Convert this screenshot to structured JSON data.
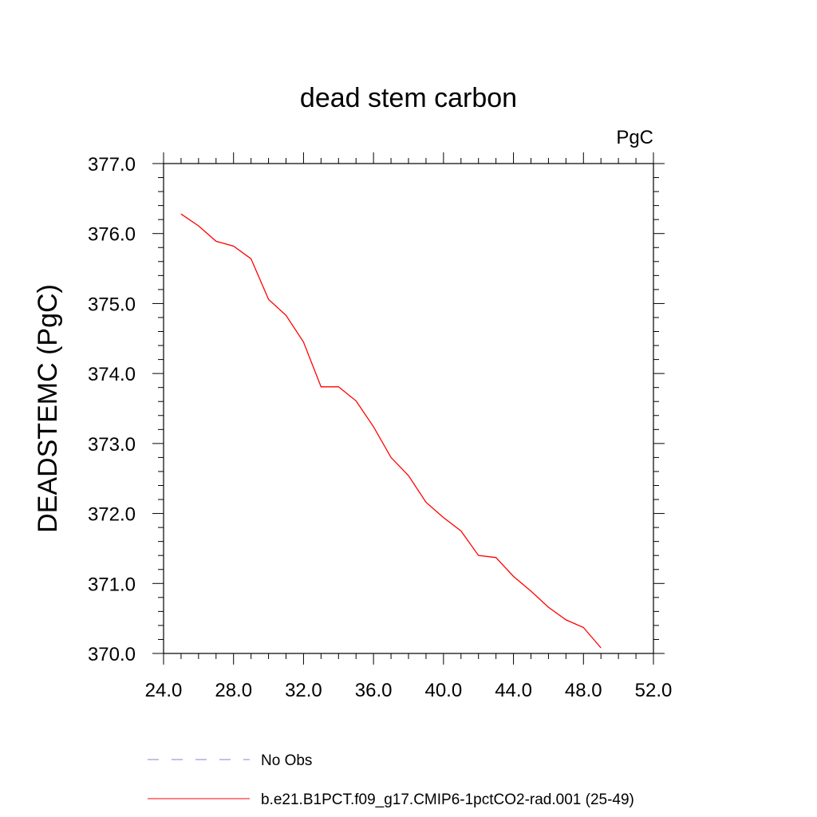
{
  "chart_data": {
    "type": "line",
    "title": "dead stem carbon",
    "units_label": "PgC",
    "xlabel": "",
    "ylabel": "DEADSTEMC  (PgC)",
    "xlim": [
      24,
      52
    ],
    "ylim": [
      370,
      377
    ],
    "x_ticks": [
      24,
      28,
      32,
      36,
      40,
      44,
      48,
      52
    ],
    "x_tick_labels": [
      "24.0",
      "28.0",
      "32.0",
      "36.0",
      "40.0",
      "44.0",
      "48.0",
      "52.0"
    ],
    "y_ticks": [
      370,
      371,
      372,
      373,
      374,
      375,
      376,
      377
    ],
    "y_tick_labels": [
      "370.0",
      "371.0",
      "372.0",
      "373.0",
      "374.0",
      "375.0",
      "376.0",
      "377.0"
    ],
    "grid": false,
    "legend_position": "bottom",
    "series": [
      {
        "name": "No Obs",
        "color": "#8a82c8",
        "style": "dashed",
        "x": [],
        "y": []
      },
      {
        "name": "b.e21.B1PCT.f09_g17.CMIP6-1pctCO2-rad.001 (25-49)",
        "color": "#ff0000",
        "style": "solid",
        "x": [
          25,
          26,
          27,
          28,
          29,
          30,
          31,
          32,
          33,
          34,
          35,
          36,
          37,
          38,
          39,
          40,
          41,
          42,
          43,
          44,
          45,
          46,
          47,
          48,
          49
        ],
        "y": [
          376.28,
          376.11,
          375.89,
          375.82,
          375.64,
          375.06,
          374.83,
          374.45,
          373.81,
          373.81,
          373.61,
          373.24,
          372.8,
          372.54,
          372.16,
          371.94,
          371.75,
          371.4,
          371.37,
          371.1,
          370.89,
          370.66,
          370.48,
          370.37,
          370.08
        ]
      }
    ]
  }
}
